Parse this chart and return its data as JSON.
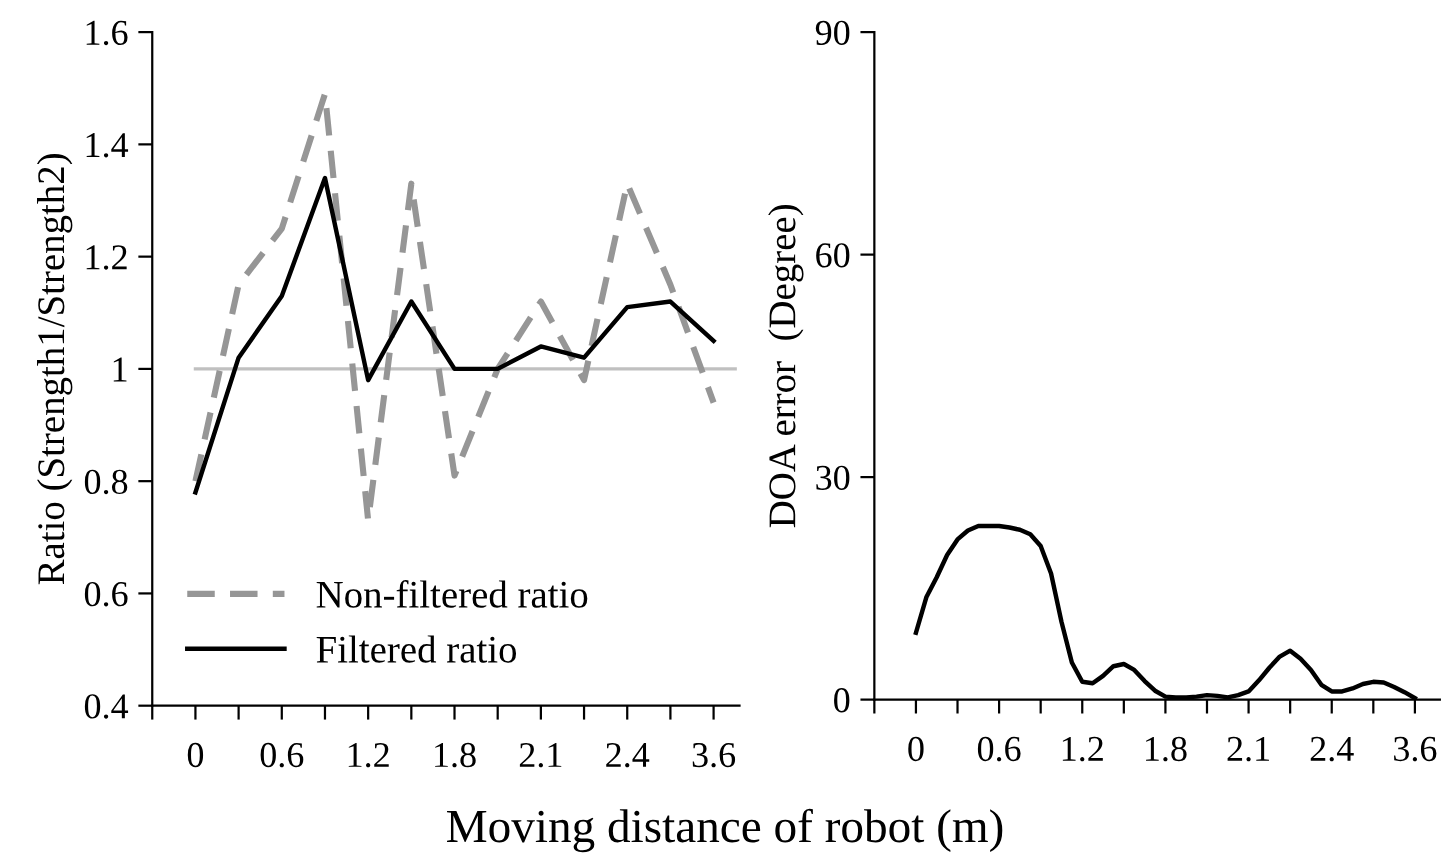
{
  "chart_data": [
    {
      "type": "line",
      "ylabel": "Ratio (Strength1/Strength2)",
      "xlabel": "Moving distance of robot (m)",
      "categories": [
        "0",
        null,
        "0.6",
        null,
        "1.2",
        null,
        "1.8",
        null,
        "2.1",
        null,
        "2.4",
        null,
        "3.6"
      ],
      "ylim": [
        0.4,
        1.6
      ],
      "yticks": [
        0.4,
        0.6,
        0.8,
        1,
        1.2,
        1.4,
        1.6
      ],
      "series": [
        {
          "name": "Non-filtered ratio",
          "color": "#969696",
          "line_style": "dashed",
          "values": [
            0.8,
            1.15,
            1.25,
            1.49,
            0.73,
            1.33,
            0.81,
            1.0,
            1.12,
            0.98,
            1.33,
            1.15,
            0.94
          ]
        },
        {
          "name": "Filtered ratio",
          "color": "#000000",
          "line_style": "solid",
          "values": [
            0.78,
            1.02,
            1.13,
            1.34,
            0.98,
            1.12,
            1.0,
            1.0,
            1.04,
            1.02,
            1.11,
            1.12,
            1.05
          ]
        }
      ],
      "ref_lines": [
        {
          "axis": "y",
          "value": 1,
          "color": "#c0c0c0"
        }
      ],
      "legend": "bottom left"
    },
    {
      "type": "line",
      "ylabel": "DOA error  (Degree)",
      "categories": [
        "0",
        null,
        null,
        null,
        null,
        null,
        null,
        null,
        "0.6",
        null,
        null,
        null,
        null,
        null,
        null,
        null,
        "1.2",
        null,
        null,
        null,
        null,
        null,
        null,
        null,
        "1.8",
        null,
        null,
        null,
        null,
        null,
        null,
        null,
        "2.1",
        null,
        null,
        null,
        null,
        null,
        null,
        null,
        "2.4",
        null,
        null,
        null,
        null,
        null,
        null,
        null,
        "3.6"
      ],
      "ylim": [
        0,
        90
      ],
      "yticks": [
        0,
        30,
        60,
        90
      ],
      "series": [
        {
          "color": "#000000",
          "line_style": "solid",
          "values": [
            9.0,
            13.8,
            16.5,
            19.5,
            21.6,
            22.8,
            23.4,
            23.4,
            23.4,
            23.2,
            22.9,
            22.3,
            20.7,
            17.0,
            10.5,
            5.0,
            2.4,
            2.2,
            3.2,
            4.5,
            4.8,
            4.0,
            2.5,
            1.2,
            0.4,
            0.3,
            0.3,
            0.4,
            0.6,
            0.5,
            0.3,
            0.6,
            1.1,
            2.6,
            4.3,
            5.8,
            6.6,
            5.5,
            4.0,
            2.0,
            1.1,
            1.1,
            1.5,
            2.1,
            2.4,
            2.3,
            1.7,
            1.0,
            0.2
          ]
        }
      ]
    }
  ]
}
